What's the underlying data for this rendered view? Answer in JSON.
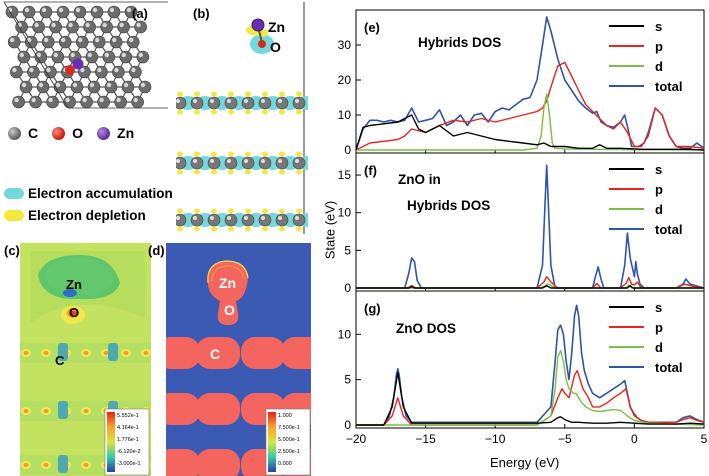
{
  "left": {
    "a": {
      "label": "(a)",
      "legend": [
        {
          "symbol": "C",
          "color": "#6f6f6f"
        },
        {
          "symbol": "O",
          "color": "#d92a1f"
        },
        {
          "symbol": "Zn",
          "color": "#7a3fb5"
        }
      ]
    },
    "b": {
      "label": "(b)",
      "zn": "Zn",
      "o": "O"
    },
    "charge_legend": [
      {
        "text": "Electron accumulation",
        "color": "#74d9dc"
      },
      {
        "text": "Electron depletion",
        "color": "#f2e93c"
      }
    ],
    "c": {
      "label": "(c)",
      "zn": "Zn",
      "o": "O",
      "c": "C",
      "colorbar": [
        "5.552e-1",
        "4.164e-1",
        "1.776e-1",
        "-6.120e-2",
        "-3.000e-1"
      ]
    },
    "d": {
      "label": "(d)",
      "zn": "Zn",
      "o": "O",
      "c": "C",
      "colorbar": [
        "1.000",
        "7.500e-1",
        "5.000e-1",
        "2.500e-1",
        "0.000"
      ]
    }
  },
  "chart_data": {
    "type": "line",
    "ylabel": "State (eV)",
    "xlabel": "Energy (eV)",
    "xlim": [
      -20,
      5
    ],
    "xticks": [
      "−20",
      "−15",
      "−10",
      "−5",
      "0",
      "5"
    ],
    "series_colors": {
      "s": "#000000",
      "p": "#e8241c",
      "d": "#7ac142",
      "total": "#2e55a6"
    },
    "panels": [
      {
        "label": "(e)",
        "title": [
          "Hybrids DOS"
        ],
        "ylim": [
          0,
          38
        ],
        "yticks": [
          "0",
          "10",
          "20",
          "30"
        ],
        "yticks_values": [
          0,
          10,
          20,
          30
        ],
        "legend": [
          "s",
          "p",
          "d",
          "total"
        ],
        "series": [
          {
            "name": "total",
            "x": [
              -20,
              -19.5,
              -19,
              -18.5,
              -18,
              -17.5,
              -17,
              -16.5,
              -16,
              -15.5,
              -15,
              -14.5,
              -14,
              -13.5,
              -13,
              -12.5,
              -12,
              -11.5,
              -11,
              -10.5,
              -10,
              -9.5,
              -9,
              -8.5,
              -8,
              -7.5,
              -7,
              -6.6,
              -6.3,
              -6,
              -5.5,
              -5,
              -4.5,
              -4,
              -3.5,
              -3,
              -2.7,
              -2.4,
              -2,
              -1.5,
              -1,
              -0.7,
              -0.4,
              -0.2,
              0,
              0.3,
              0.7,
              1,
              1.5,
              2,
              2.5,
              3,
              3.5,
              4,
              4.5,
              5
            ],
            "y": [
              0,
              6,
              8.5,
              8.5,
              8,
              8.5,
              8,
              8.5,
              12,
              8,
              8.5,
              9,
              11.5,
              7,
              8,
              10,
              7,
              10,
              10.5,
              8,
              11,
              12,
              11.5,
              13,
              14.5,
              15,
              20,
              30,
              38,
              34,
              26,
              20,
              17,
              14,
              12,
              10.5,
              11,
              8,
              7,
              6.5,
              8,
              10,
              5,
              1,
              1,
              1,
              2,
              5,
              12,
              10,
              4,
              1,
              0.5,
              0.5,
              2,
              0.5
            ]
          },
          {
            "name": "p",
            "x": [
              -20,
              -19.5,
              -19,
              -18,
              -17,
              -16.5,
              -16,
              -15,
              -14,
              -13,
              -12,
              -11,
              -10,
              -9,
              -8,
              -7,
              -6.6,
              -6.3,
              -6,
              -5.5,
              -5,
              -4.5,
              -4,
              -3.5,
              -3,
              -2.5,
              -2,
              -1.5,
              -1,
              -0.5,
              0,
              0.5,
              1,
              1.5,
              2,
              2.5,
              3,
              4,
              5
            ],
            "y": [
              0,
              1,
              2,
              2.5,
              3,
              4,
              6,
              5,
              7,
              8.5,
              8,
              9,
              8,
              9,
              10,
              11,
              12,
              14,
              18,
              24,
              25,
              21,
              17,
              13,
              11,
              9,
              7,
              6,
              8,
              5,
              1,
              1,
              4,
              12,
              10,
              4,
              1,
              1,
              0.5
            ]
          },
          {
            "name": "s",
            "x": [
              -20,
              -19.5,
              -19,
              -18,
              -17,
              -16.5,
              -16,
              -15.5,
              -15,
              -14,
              -13,
              -12,
              -11,
              -10,
              -9,
              -8,
              -7,
              -6.5,
              -6,
              -5,
              -4,
              -3,
              -2.5,
              -2,
              -1,
              0,
              0.5,
              1,
              2,
              3,
              4,
              5
            ],
            "y": [
              0,
              6.5,
              7,
              7.5,
              8,
              9,
              10,
              6,
              5,
              7,
              4,
              5,
              4,
              3,
              2.5,
              2,
              1.5,
              2,
              1,
              1,
              0.5,
              0.5,
              1.5,
              0.5,
              0.5,
              0.3,
              0.2,
              0.2,
              0.2,
              0.2,
              0.2,
              0
            ]
          },
          {
            "name": "d",
            "x": [
              -20,
              -8,
              -7,
              -6.7,
              -6.5,
              -6.3,
              -6.1,
              -5.9,
              -5.7,
              -5,
              -3,
              0,
              5
            ],
            "y": [
              0,
              0,
              0.5,
              4,
              12,
              16,
              10,
              2,
              0.5,
              0.3,
              0.2,
              0.1,
              0
            ]
          }
        ]
      },
      {
        "label": "(f)",
        "title": [
          "ZnO in",
          "Hybrids DOS"
        ],
        "ylim": [
          0,
          17
        ],
        "yticks": [
          "0",
          "5",
          "10",
          "15"
        ],
        "yticks_values": [
          0,
          5,
          10,
          15
        ],
        "legend": [
          "s",
          "p",
          "d",
          "total"
        ],
        "series": [
          {
            "name": "total",
            "x": [
              -20,
              -16.5,
              -16.2,
              -16,
              -15.8,
              -15.6,
              -15.3,
              -7,
              -6.6,
              -6.4,
              -6.3,
              -6.2,
              -6,
              -5.7,
              -3,
              -2.8,
              -2.6,
              -2.4,
              -2.2,
              -1,
              -0.7,
              -0.5,
              -0.3,
              0,
              0.1,
              0.2,
              0.4,
              0.7,
              1,
              3,
              3.5,
              3.7,
              4,
              5
            ],
            "y": [
              0,
              0,
              2,
              4,
              3.5,
              1,
              0,
              0,
              3,
              12,
              16.3,
              12,
              3,
              0,
              0,
              1.5,
              2.8,
              1.2,
              0,
              0,
              3,
              7.3,
              4,
              1.5,
              3.5,
              2,
              0.5,
              0,
              0,
              0,
              0.5,
              1.2,
              0.5,
              0
            ]
          },
          {
            "name": "p",
            "x": [
              -20,
              -16.3,
              -16,
              -15.7,
              -7,
              -6.5,
              -6.3,
              -6,
              -5.5,
              -3,
              -2.7,
              -2.4,
              -1,
              -0.6,
              -0.4,
              -0.2,
              0,
              0.2,
              0.5,
              3,
              3.6,
              4,
              5
            ],
            "y": [
              0,
              0,
              0.3,
              0,
              0,
              0.8,
              1.5,
              0.8,
              0,
              0,
              0.6,
              0,
              0,
              0.6,
              1.4,
              0.5,
              0.4,
              0.8,
              0,
              0,
              0.5,
              0.3,
              0
            ]
          },
          {
            "name": "d",
            "x": [
              -20,
              -6.8,
              -6.4,
              -6.2,
              -6,
              -5.6,
              -0.6,
              -0.4,
              -0.2,
              5
            ],
            "y": [
              0,
              0,
              0.3,
              0.6,
              0.3,
              0,
              0,
              0.4,
              0,
              0
            ]
          },
          {
            "name": "s",
            "x": [
              -20,
              -16.2,
              -16,
              -15.8,
              -6.6,
              -6.3,
              -6,
              -0.5,
              -0.3,
              -0.1,
              5
            ],
            "y": [
              0,
              0,
              0.2,
              0,
              0,
              0.3,
              0,
              0,
              0.3,
              0,
              0
            ]
          }
        ]
      },
      {
        "label": "(g)",
        "title": [
          "ZnO DOS"
        ],
        "ylim": [
          0,
          14
        ],
        "yticks": [
          "0",
          "5",
          "10"
        ],
        "yticks_values": [
          0,
          5,
          10
        ],
        "legend": [
          "s",
          "p",
          "d",
          "total"
        ],
        "series": [
          {
            "name": "total",
            "x": [
              -20,
              -18,
              -17.6,
              -17.3,
              -17.1,
              -17,
              -16.9,
              -16.7,
              -16.4,
              -16,
              -7,
              -6,
              -5.7,
              -5.5,
              -5.3,
              -5.1,
              -4.9,
              -4.7,
              -4.5,
              -4.3,
              -4.15,
              -4,
              -3.8,
              -3.6,
              -3.3,
              -3,
              -2.5,
              -2,
              -1.5,
              -1,
              -0.7,
              -0.5,
              -0.3,
              0,
              0.2,
              0.5,
              1,
              3,
              3.5,
              4,
              4.5,
              5
            ],
            "y": [
              0,
              0,
              1,
              3,
              5.5,
              6.2,
              5.5,
              3,
              1,
              0.3,
              0.3,
              2,
              7,
              10.5,
              11,
              10,
              7,
              5,
              8,
              12,
              13.2,
              12,
              8,
              6,
              4.5,
              3.5,
              3,
              3.5,
              4,
              4.5,
              4.9,
              3.5,
              2,
              1.2,
              0.8,
              0.5,
              0.3,
              0.3,
              0.8,
              1,
              0.6,
              0.3
            ]
          },
          {
            "name": "s",
            "x": [
              -20,
              -18,
              -17.4,
              -17,
              -16.6,
              -16,
              -7,
              -6,
              -5.5,
              -5.3,
              -5,
              -4.5,
              -4,
              -3,
              -2,
              -1,
              0,
              1,
              3,
              4,
              5
            ],
            "y": [
              0,
              0,
              2,
              5.8,
              2,
              0.2,
              0.2,
              0.3,
              0.8,
              0.9,
              0.6,
              0.3,
              0.3,
              0.2,
              0.2,
              0.3,
              0.2,
              0.1,
              0.1,
              0.2,
              0.1
            ]
          },
          {
            "name": "p",
            "x": [
              -20,
              -18,
              -17.4,
              -17,
              -16.6,
              -16,
              -7,
              -6,
              -5.5,
              -5.2,
              -5,
              -4.7,
              -4.3,
              -4.1,
              -4,
              -3.7,
              -3.3,
              -3,
              -2.5,
              -2,
              -1.5,
              -1,
              -0.6,
              -0.3,
              0,
              0.5,
              1,
              3,
              3.5,
              4,
              4.5,
              5
            ],
            "y": [
              0,
              0,
              1,
              3,
              1,
              0,
              0,
              1,
              3,
              4,
              3.5,
              3,
              5.5,
              6,
              5.5,
              4,
              3,
              2,
              2,
              2.4,
              3,
              3.5,
              4,
              2,
              1,
              0.5,
              0.3,
              0.3,
              0.6,
              0.8,
              0.5,
              0.3
            ]
          },
          {
            "name": "d",
            "x": [
              -20,
              -7,
              -6,
              -5.7,
              -5.5,
              -5.3,
              -5.1,
              -4.9,
              -4.7,
              -4.4,
              -4.2,
              -4,
              -3.8,
              -3.5,
              -3,
              -2.5,
              -2,
              -1.5,
              -1,
              -0.5,
              0,
              1,
              5
            ],
            "y": [
              0,
              0,
              1,
              4,
              7.5,
              8.2,
              7,
              5,
              4,
              3.5,
              3.5,
              3,
              2.5,
              2,
              1.6,
              1.5,
              1.6,
              1.7,
              1.6,
              1,
              0.5,
              0.2,
              0
            ]
          }
        ]
      }
    ]
  }
}
